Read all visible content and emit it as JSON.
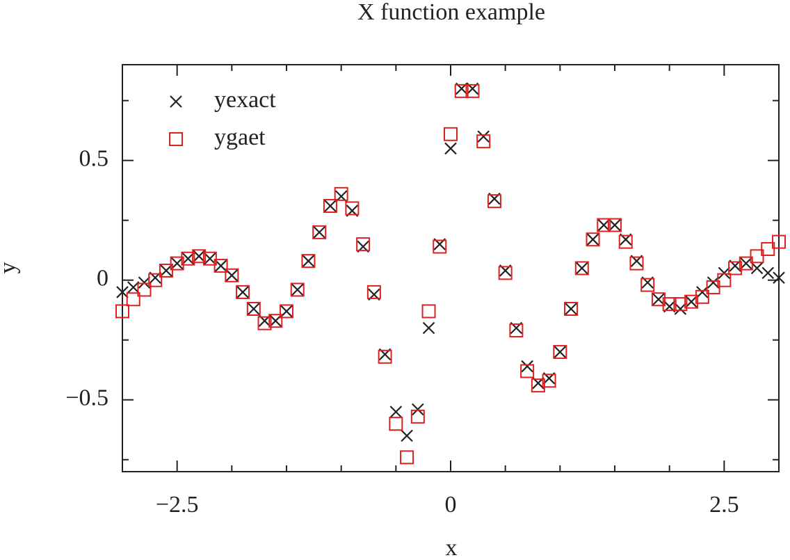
{
  "chart_data": {
    "type": "scatter",
    "title": "X function example",
    "xlabel": "x",
    "ylabel": "y",
    "x": [
      -3.0,
      -2.9,
      -2.8,
      -2.7,
      -2.6,
      -2.5,
      -2.4,
      -2.3,
      -2.2,
      -2.1,
      -2.0,
      -1.9,
      -1.8,
      -1.7,
      -1.6,
      -1.5,
      -1.4,
      -1.3,
      -1.2,
      -1.1,
      -1.0,
      -0.9,
      -0.8,
      -0.7,
      -0.6,
      -0.5,
      -0.4,
      -0.3,
      -0.2,
      -0.1,
      0.0,
      0.1,
      0.2,
      0.3,
      0.4,
      0.5,
      0.6,
      0.7,
      0.8,
      0.9,
      1.0,
      1.1,
      1.2,
      1.3,
      1.4,
      1.5,
      1.6,
      1.7,
      1.8,
      1.9,
      2.0,
      2.1,
      2.2,
      2.3,
      2.4,
      2.5,
      2.6,
      2.7,
      2.8,
      2.9,
      3.0
    ],
    "series": [
      {
        "name": "yexact",
        "color": "#222222",
        "marker": "x",
        "values": [
          -0.05,
          -0.03,
          -0.01,
          0.01,
          0.04,
          0.07,
          0.09,
          0.1,
          0.09,
          0.06,
          0.02,
          -0.05,
          -0.12,
          -0.17,
          -0.17,
          -0.13,
          -0.04,
          0.08,
          0.2,
          0.31,
          0.35,
          0.29,
          0.14,
          -0.06,
          -0.31,
          -0.55,
          -0.65,
          -0.54,
          -0.2,
          0.15,
          0.55,
          0.8,
          0.8,
          0.6,
          0.34,
          0.04,
          -0.2,
          -0.36,
          -0.43,
          -0.41,
          -0.3,
          -0.12,
          0.05,
          0.17,
          0.23,
          0.23,
          0.17,
          0.08,
          -0.01,
          -0.08,
          -0.11,
          -0.12,
          -0.09,
          -0.05,
          -0.01,
          0.03,
          0.06,
          0.07,
          0.05,
          0.03,
          0.01
        ]
      },
      {
        "name": "ygaet",
        "color": "#e02020",
        "marker": "square",
        "values": [
          -0.13,
          -0.08,
          -0.04,
          0.0,
          0.04,
          0.07,
          0.09,
          0.1,
          0.09,
          0.06,
          0.02,
          -0.05,
          -0.12,
          -0.18,
          -0.17,
          -0.13,
          -0.04,
          0.08,
          0.2,
          0.31,
          0.36,
          0.3,
          0.15,
          -0.05,
          -0.32,
          -0.6,
          -0.74,
          -0.57,
          -0.13,
          0.14,
          0.61,
          0.79,
          0.79,
          0.58,
          0.33,
          0.03,
          -0.21,
          -0.38,
          -0.44,
          -0.42,
          -0.3,
          -0.12,
          0.05,
          0.17,
          0.23,
          0.23,
          0.16,
          0.07,
          -0.02,
          -0.08,
          -0.1,
          -0.1,
          -0.09,
          -0.07,
          -0.03,
          0.0,
          0.05,
          0.07,
          0.1,
          0.13,
          0.16
        ]
      }
    ],
    "xlim": [
      -3,
      3
    ],
    "ylim": [
      -0.8,
      0.9
    ],
    "xticks": [
      {
        "value": -2.5,
        "label": "−2.5"
      },
      0,
      2.5
    ],
    "yticks": [
      {
        "value": -0.5,
        "label": "−0.5"
      },
      0,
      0.5
    ],
    "xminorticks": [
      -3,
      -2,
      -1.5,
      -1,
      -0.5,
      0.5,
      1,
      1.5,
      2,
      3
    ],
    "yminorticks": [
      -0.75,
      -0.25,
      0.25,
      0.75
    ],
    "legend": "upper left",
    "grid": false
  }
}
